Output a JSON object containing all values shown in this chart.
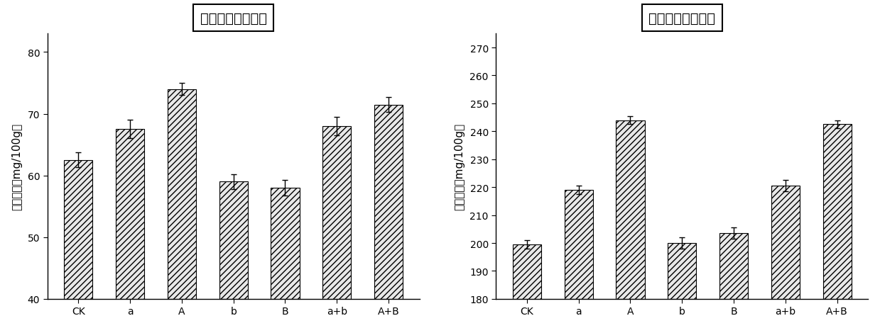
{
  "chart1": {
    "title": "火龙果皮色素得率",
    "ylabel": "色素得率（mg/100g）",
    "categories": [
      "CK",
      "a",
      "A",
      "b",
      "B",
      "a+b",
      "A+B"
    ],
    "values": [
      62.5,
      67.5,
      74.0,
      59.0,
      58.0,
      68.0,
      71.5
    ],
    "errors": [
      1.2,
      1.5,
      1.0,
      1.2,
      1.3,
      1.5,
      1.2
    ],
    "ylim": [
      40,
      83
    ],
    "yticks": [
      40,
      50,
      60,
      70,
      80
    ]
  },
  "chart2": {
    "title": "火龙果肉色素得率",
    "ylabel": "色素得率（mg/100g）",
    "categories": [
      "CK",
      "a",
      "A",
      "b",
      "B",
      "a+b",
      "A+B"
    ],
    "values": [
      199.5,
      219.0,
      244.0,
      200.0,
      203.5,
      220.5,
      242.5
    ],
    "errors": [
      1.5,
      1.5,
      1.5,
      2.0,
      2.0,
      2.0,
      1.5
    ],
    "ylim": [
      180,
      275
    ],
    "yticks": [
      180,
      190,
      200,
      210,
      220,
      230,
      240,
      250,
      260,
      270
    ]
  },
  "bar_color": "#e8e8e8",
  "hatch": "////",
  "edgecolor": "#000000",
  "background_color": "#ffffff",
  "title_fontsize": 14,
  "label_fontsize": 11,
  "tick_fontsize": 10
}
